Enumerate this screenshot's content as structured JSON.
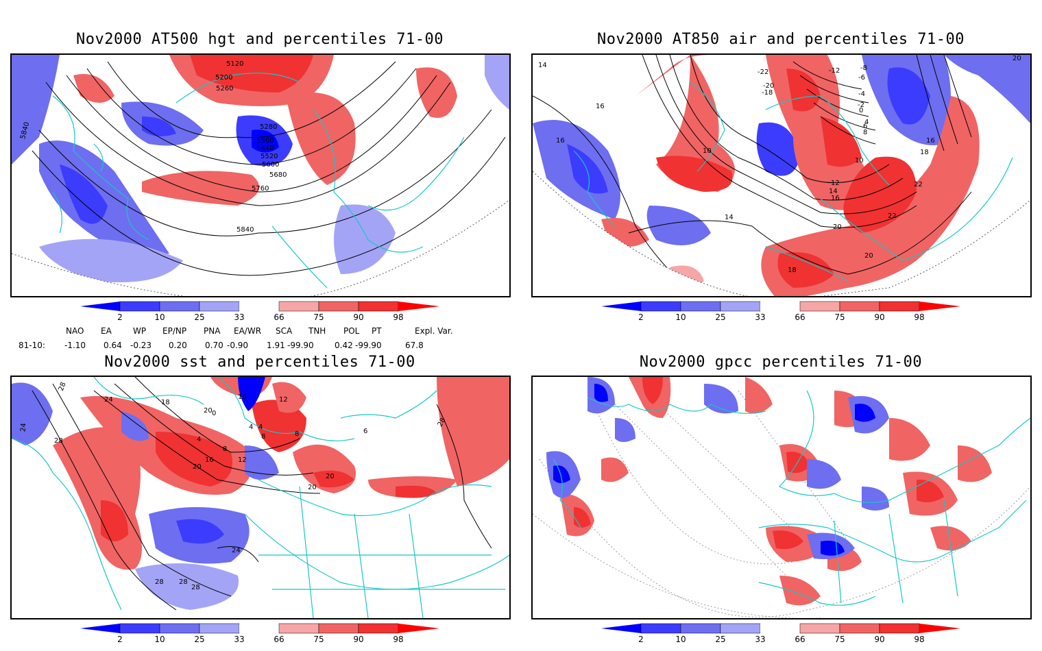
{
  "panels": [
    {
      "id": "p1",
      "title": "Nov2000 AT500 hgt and percentiles 71-00",
      "contour_labels": [
        "5120",
        "5200",
        "5260",
        "5280",
        "5360",
        "5440",
        "5520",
        "5600",
        "5680",
        "5760",
        "5840",
        "5840"
      ]
    },
    {
      "id": "p2",
      "title": "Nov2000 AT850 air and percentiles 71-00",
      "contour_labels": [
        "14",
        "16",
        "16",
        "10",
        "-22",
        "-12",
        "-8",
        "-6",
        "-4",
        "-2",
        "0",
        "4",
        "6",
        "8",
        "10",
        "12",
        "14",
        "16",
        "18",
        "20",
        "20",
        "22",
        "22",
        "-20",
        "-18",
        "16",
        "14",
        "18",
        "20"
      ]
    },
    {
      "id": "p3",
      "title": "Nov2000 sst and percentiles 71-00",
      "contour_labels": [
        "28",
        "24",
        "24",
        "28",
        "18",
        "12",
        "8",
        "4",
        "0",
        "4",
        "20",
        "16",
        "12",
        "8",
        "4",
        "8",
        "6",
        "20",
        "20",
        "20",
        "16",
        "24",
        "28",
        "28",
        "28",
        "28"
      ]
    },
    {
      "id": "p4",
      "title": "Nov2000 gpcc percentiles 71-00",
      "contour_labels": []
    }
  ],
  "colorbar": {
    "ticks": [
      "2",
      "10",
      "25",
      "33",
      "66",
      "75",
      "90",
      "98"
    ],
    "colors": [
      "#0000ff",
      "#3c3cff",
      "#6e6ef0",
      "#a4a4f6",
      "#ffffff",
      "#f6a6a6",
      "#f06464",
      "#f03232",
      "#ff0000"
    ]
  },
  "teleconnections": {
    "headers": [
      "NAO",
      "EA",
      "WP",
      "EP/NP",
      "PNA",
      "EA/WR",
      "SCA",
      "TNH",
      "POL",
      "PT",
      "Expl. Var."
    ],
    "row_label": "81-10:",
    "values": [
      "-1.10",
      "0.64",
      "-0.23",
      "0.20",
      "0.70",
      "-0.90",
      "1.91",
      "-99.90",
      "0.42",
      "-99.90",
      "67.8"
    ]
  }
}
